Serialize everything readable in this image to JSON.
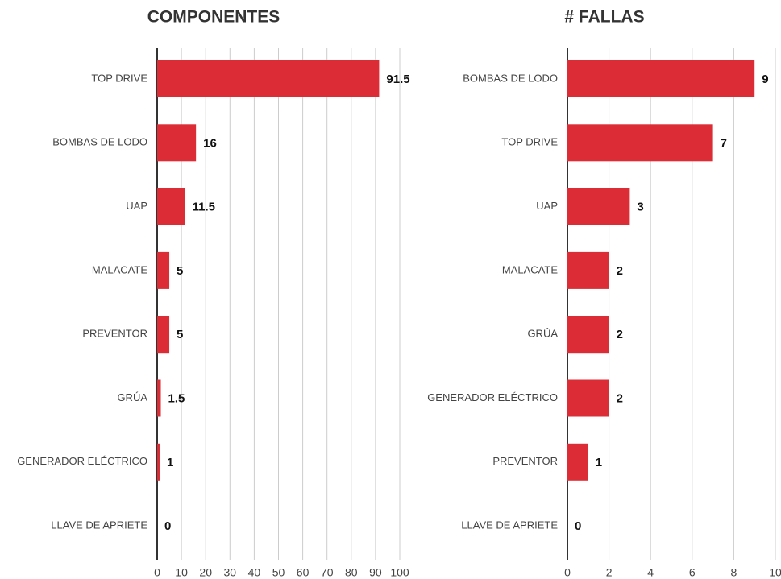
{
  "chart_data": [
    {
      "type": "barh",
      "title": "COMPONENTES",
      "categories": [
        "TOP DRIVE",
        "BOMBAS DE LODO",
        "UAP",
        "MALACATE",
        "PREVENTOR",
        "GRÚA",
        "GENERADOR ELÉCTRICO",
        "LLAVE DE APRIETE"
      ],
      "values": [
        91.5,
        16,
        11.5,
        5,
        5,
        1.5,
        1,
        0
      ],
      "color": "#dc2c35",
      "xlim": [
        0,
        100
      ],
      "xticks": [
        0,
        10,
        20,
        30,
        40,
        50,
        60,
        70,
        80,
        90,
        100
      ],
      "grid": true
    },
    {
      "type": "barh",
      "title": "# FALLAS",
      "categories": [
        "BOMBAS DE LODO",
        "TOP DRIVE",
        "UAP",
        "MALACATE",
        "GRÚA",
        "GENERADOR ELÉCTRICO",
        "PREVENTOR",
        "LLAVE DE APRIETE"
      ],
      "values": [
        9,
        7,
        3,
        2,
        2,
        2,
        1,
        0
      ],
      "color": "#dc2c35",
      "xlim": [
        0,
        10
      ],
      "xticks": [
        0,
        2,
        4,
        6,
        8,
        10
      ],
      "grid": true
    }
  ]
}
